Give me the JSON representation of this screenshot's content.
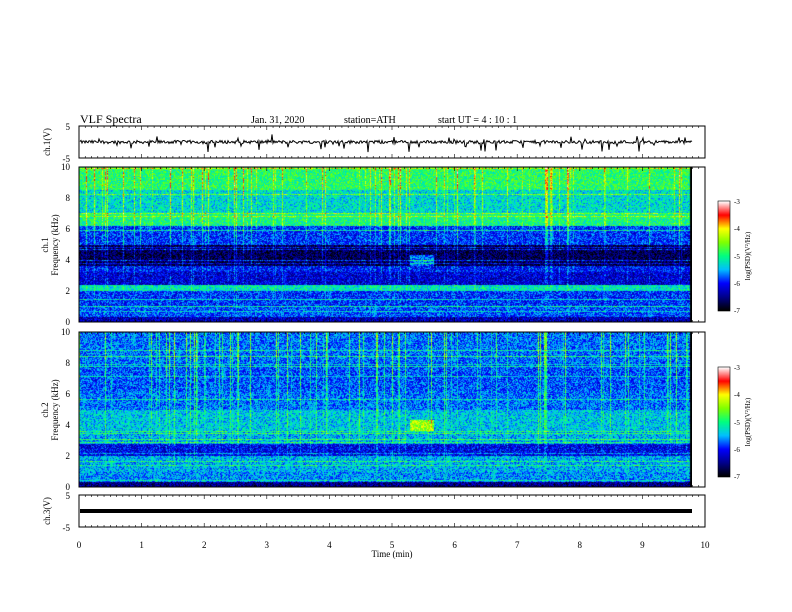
{
  "header": {
    "title": "VLF Spectra",
    "date": "Jan. 31, 2020",
    "station": "station=ATH",
    "start": "start UT =  4 : 10 : 1"
  },
  "chart_data": {
    "type": "heatmap",
    "x_axis": {
      "label": "Time (min)",
      "range": [
        0,
        10
      ],
      "ticks": [
        "0",
        "1",
        "2",
        "3",
        "4",
        "5",
        "6",
        "7",
        "8",
        "9",
        "10"
      ],
      "data_end": 9.8
    },
    "panels": [
      {
        "kind": "waveform",
        "ylabel": "ch.1(V)",
        "yticks": [
          "5",
          "-5"
        ],
        "ylim": [
          -5,
          5
        ],
        "baseline_V": 0,
        "amplitude_V": 1,
        "line_color": "#000000"
      },
      {
        "kind": "spectrogram",
        "ylabel": "ch.1",
        "ylabel2": "Frequency (kHz)",
        "yticks": [
          "10",
          "8",
          "6",
          "4",
          "2",
          "0"
        ],
        "ylim_kHz": [
          0,
          10
        ],
        "level_bands": [
          {
            "from_kHz": 0.0,
            "to_kHz": 0.3,
            "logPSD": -6.3
          },
          {
            "from_kHz": 0.3,
            "to_kHz": 1.0,
            "logPSD": -5.8
          },
          {
            "from_kHz": 1.0,
            "to_kHz": 2.0,
            "logPSD": -5.9
          },
          {
            "from_kHz": 2.0,
            "to_kHz": 2.4,
            "logPSD": -5.2
          },
          {
            "from_kHz": 2.4,
            "to_kHz": 3.2,
            "logPSD": -6.2
          },
          {
            "from_kHz": 3.2,
            "to_kHz": 3.6,
            "logPSD": -6.0
          },
          {
            "from_kHz": 3.6,
            "to_kHz": 5.0,
            "logPSD": -6.7
          },
          {
            "from_kHz": 5.0,
            "to_kHz": 6.2,
            "logPSD": -5.9
          },
          {
            "from_kHz": 6.2,
            "to_kHz": 7.0,
            "logPSD": -5.0
          },
          {
            "from_kHz": 7.0,
            "to_kHz": 8.5,
            "logPSD": -5.3
          },
          {
            "from_kHz": 8.5,
            "to_kHz": 10.0,
            "logPSD": -4.9
          }
        ]
      },
      {
        "kind": "spectrogram",
        "ylabel": "ch.2",
        "ylabel2": "Frequency (kHz)",
        "yticks": [
          "10",
          "8",
          "6",
          "4",
          "2",
          "0"
        ],
        "ylim_kHz": [
          0,
          10
        ],
        "level_bands": [
          {
            "from_kHz": 0.0,
            "to_kHz": 0.3,
            "logPSD": -6.5
          },
          {
            "from_kHz": 0.3,
            "to_kHz": 1.0,
            "logPSD": -5.6
          },
          {
            "from_kHz": 1.0,
            "to_kHz": 2.0,
            "logPSD": -5.5
          },
          {
            "from_kHz": 2.0,
            "to_kHz": 2.8,
            "logPSD": -6.1
          },
          {
            "from_kHz": 2.8,
            "to_kHz": 3.6,
            "logPSD": -5.5
          },
          {
            "from_kHz": 3.6,
            "to_kHz": 5.0,
            "logPSD": -5.4
          },
          {
            "from_kHz": 5.0,
            "to_kHz": 6.2,
            "logPSD": -5.7
          },
          {
            "from_kHz": 6.2,
            "to_kHz": 8.0,
            "logPSD": -5.8
          },
          {
            "from_kHz": 8.0,
            "to_kHz": 10.0,
            "logPSD": -5.7
          }
        ]
      },
      {
        "kind": "waveform",
        "ylabel": "ch.3(V)",
        "yticks": [
          "5",
          "-5"
        ],
        "ylim": [
          -5,
          5
        ],
        "baseline_V": 0,
        "amplitude_V": 0,
        "line_color": "#000000"
      }
    ],
    "colorbar": {
      "label": "log(PSD)(V²/Hz)",
      "ticks": [
        "-3",
        "-4",
        "-5",
        "-6",
        "-7"
      ],
      "range": [
        -7,
        -3
      ],
      "colors": [
        "#000000",
        "#00008b",
        "#0000ff",
        "#00bfff",
        "#00ff80",
        "#7fff00",
        "#ffff00",
        "#ff0000",
        "#ffffff"
      ]
    }
  }
}
